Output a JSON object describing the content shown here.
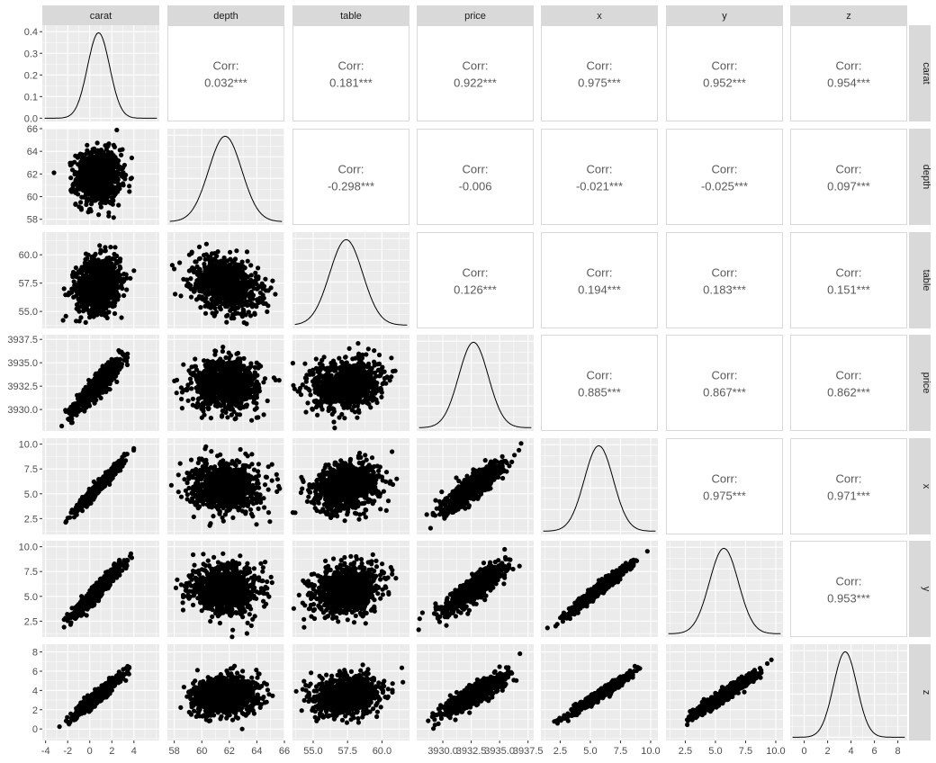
{
  "chart_data": {
    "type": "scatter",
    "variables": [
      "carat",
      "depth",
      "table",
      "price",
      "x",
      "y",
      "z"
    ],
    "axis_ranges": {
      "carat": [
        -4.3,
        6.3
      ],
      "depth": [
        57.5,
        66.0
      ],
      "table": [
        53.5,
        62.0
      ],
      "price": [
        3927.7,
        3938.0
      ],
      "x": [
        0.9,
        10.6
      ],
      "y": [
        0.9,
        10.6
      ],
      "z": [
        -1.2,
        8.8
      ]
    },
    "x_tick_labels": {
      "carat": [
        "-4",
        "-2",
        "0",
        "2",
        "4"
      ],
      "depth": [
        "58",
        "60",
        "62",
        "64",
        "66"
      ],
      "table": [
        "55.0",
        "57.5",
        "60.0"
      ],
      "price": [
        "3930.0",
        "3932.5",
        "3935.0",
        "3937.5"
      ],
      "x": [
        "2.5",
        "5.0",
        "7.5",
        "10.0"
      ],
      "y": [
        "2.5",
        "5.0",
        "7.5",
        "10.0"
      ],
      "z": [
        "0",
        "2",
        "4",
        "6",
        "8"
      ]
    },
    "y_tick_labels": {
      "carat": [
        "0.0",
        "0.1",
        "0.2",
        "0.3",
        "0.4"
      ],
      "depth": [
        "58",
        "60",
        "62",
        "64",
        "66"
      ],
      "table": [
        "55.0",
        "57.5",
        "60.0"
      ],
      "price": [
        "3930.0",
        "3932.5",
        "3935.0",
        "3937.5"
      ],
      "x": [
        "2.5",
        "5.0",
        "7.5",
        "10.0"
      ],
      "y": [
        "2.5",
        "5.0",
        "7.5",
        "10.0"
      ],
      "z": [
        "0",
        "2",
        "4",
        "6",
        "8"
      ]
    },
    "densities": {
      "carat": {
        "mean": 0.8,
        "sd": 1.0
      },
      "depth": {
        "mean": 61.7,
        "sd": 1.2
      },
      "table": {
        "mean": 57.4,
        "sd": 1.2
      },
      "price": {
        "mean": 3932.7,
        "sd": 1.3
      },
      "x": {
        "mean": 5.7,
        "sd": 1.2
      },
      "y": {
        "mean": 5.7,
        "sd": 1.2
      },
      "z": {
        "mean": 3.5,
        "sd": 1.0
      }
    },
    "corr_label": "Corr:",
    "correlations": [
      {
        "row": "carat",
        "col": "depth",
        "value": "0.032***"
      },
      {
        "row": "carat",
        "col": "table",
        "value": "0.181***"
      },
      {
        "row": "carat",
        "col": "price",
        "value": "0.922***"
      },
      {
        "row": "carat",
        "col": "x",
        "value": "0.975***"
      },
      {
        "row": "carat",
        "col": "y",
        "value": "0.952***"
      },
      {
        "row": "carat",
        "col": "z",
        "value": "0.954***"
      },
      {
        "row": "depth",
        "col": "table",
        "value": "-0.298***"
      },
      {
        "row": "depth",
        "col": "price",
        "value": "-0.006"
      },
      {
        "row": "depth",
        "col": "x",
        "value": "-0.021***"
      },
      {
        "row": "depth",
        "col": "y",
        "value": "-0.025***"
      },
      {
        "row": "depth",
        "col": "z",
        "value": "0.097***"
      },
      {
        "row": "table",
        "col": "price",
        "value": "0.126***"
      },
      {
        "row": "table",
        "col": "x",
        "value": "0.194***"
      },
      {
        "row": "table",
        "col": "y",
        "value": "0.183***"
      },
      {
        "row": "table",
        "col": "z",
        "value": "0.151***"
      },
      {
        "row": "price",
        "col": "x",
        "value": "0.885***"
      },
      {
        "row": "price",
        "col": "y",
        "value": "0.867***"
      },
      {
        "row": "price",
        "col": "z",
        "value": "0.862***"
      },
      {
        "row": "x",
        "col": "y",
        "value": "0.975***"
      },
      {
        "row": "x",
        "col": "z",
        "value": "0.971***"
      },
      {
        "row": "y",
        "col": "z",
        "value": "0.953***"
      }
    ],
    "grid": true,
    "colors": {
      "panel_background": "#ebebeb",
      "gridline": "#ffffff",
      "strip_background": "#d9d9d9",
      "points": "#000000",
      "density_line": "#000000",
      "corr_text": "#595959"
    }
  }
}
